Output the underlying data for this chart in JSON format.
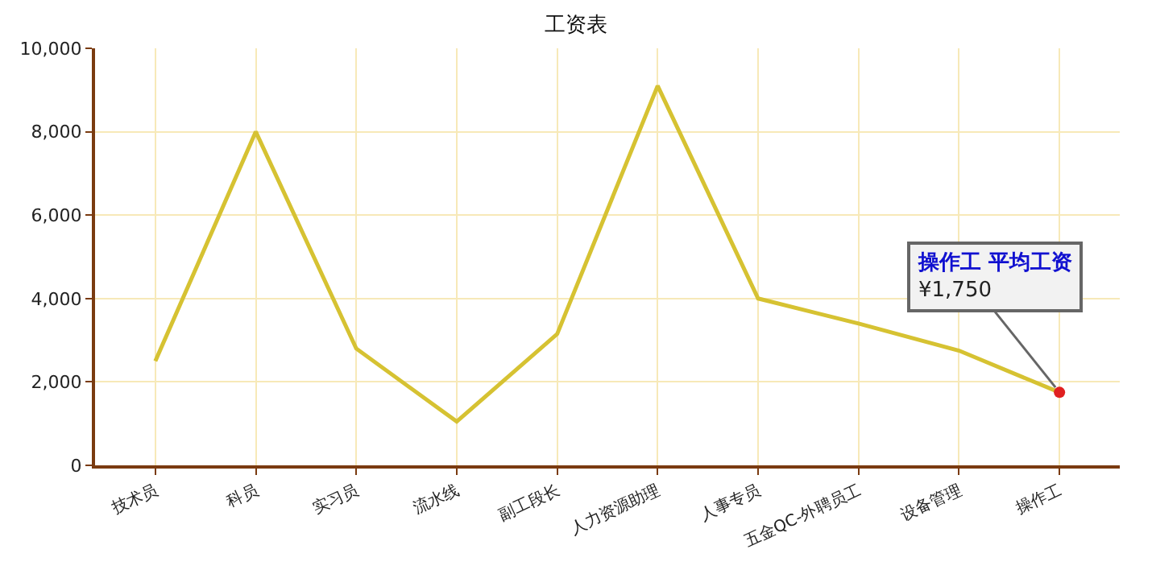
{
  "chart_data": {
    "type": "line",
    "title": "工资表",
    "categories": [
      "技术员",
      "科员",
      "实习员",
      "流水线",
      "副工段长",
      "人力资源助理",
      "人事专员",
      "五金QC-外聘员工",
      "设备管理",
      "操作工"
    ],
    "series": [
      {
        "color": "#d6c232",
        "values": [
          2500,
          8000,
          2800,
          1050,
          3150,
          9100,
          4000,
          3400,
          2750,
          1750
        ]
      }
    ],
    "ylim": [
      0,
      10000
    ],
    "yticks": [
      0,
      {
        "value": 2000,
        "label": "2,000"
      },
      {
        "value": 4000,
        "label": "4,000"
      },
      {
        "value": 6000,
        "label": "6,000"
      },
      {
        "value": 8000,
        "label": "8,000"
      },
      {
        "value": 10000,
        "label": "10,000"
      }
    ],
    "grid": true,
    "marker": "none",
    "line_style": "solid",
    "annotations": [
      {
        "text": "操作工 平均工资\n¥1,750",
        "x": "操作工",
        "y": 1750
      }
    ]
  }
}
